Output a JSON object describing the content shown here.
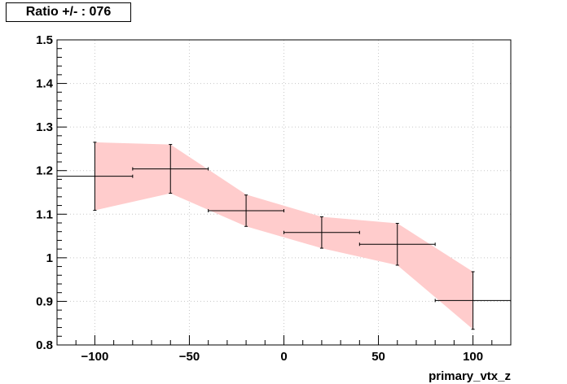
{
  "chart_data": {
    "type": "line",
    "title": "Ratio +/- : 076",
    "xlabel": "primary_vtx_z",
    "ylabel": "",
    "xlim": [
      -120,
      120
    ],
    "ylim": [
      0.8,
      1.5
    ],
    "x_ticks": [
      -100,
      -50,
      0,
      50,
      100
    ],
    "x_tick_labels": [
      "−100",
      "−50",
      "0",
      "50",
      "100"
    ],
    "y_ticks": [
      0.8,
      0.9,
      1.0,
      1.1,
      1.2,
      1.3,
      1.4,
      1.5
    ],
    "y_tick_labels": [
      "0.8",
      "0.9",
      "1",
      "1.1",
      "1.2",
      "1.3",
      "1.4",
      "1.5"
    ],
    "grid": true,
    "series": [
      {
        "points": [
          {
            "x": -100,
            "y": 1.187,
            "xerr": 20,
            "yerr": 0.078
          },
          {
            "x": -60,
            "y": 1.204,
            "xerr": 20,
            "yerr": 0.056
          },
          {
            "x": -20,
            "y": 1.108,
            "xerr": 20,
            "yerr": 0.036
          },
          {
            "x": 20,
            "y": 1.058,
            "xerr": 20,
            "yerr": 0.036
          },
          {
            "x": 60,
            "y": 1.031,
            "xerr": 20,
            "yerr": 0.048
          },
          {
            "x": 100,
            "y": 0.902,
            "xerr": 20,
            "yerr": 0.066
          }
        ]
      }
    ],
    "band": {
      "color": "#ffcccc",
      "x": [
        -100,
        -60,
        -20,
        20,
        60,
        100
      ],
      "upper": [
        1.265,
        1.26,
        1.145,
        1.094,
        1.079,
        0.968
      ],
      "lower": [
        1.109,
        1.148,
        1.072,
        1.022,
        0.983,
        0.836
      ]
    }
  }
}
